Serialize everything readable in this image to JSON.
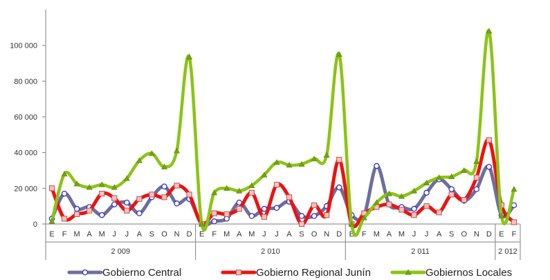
{
  "colors": {
    "Gobierno Central": "#6e6e9e",
    "Gobierno Regional Junín": "#ee1111",
    "Gobiernos Locales": "#8cc414"
  },
  "chart_data": {
    "type": "line",
    "title": "",
    "xlabel": "",
    "ylabel": "",
    "ylim": [
      0,
      120000
    ],
    "yticks": [
      0,
      20000,
      40000,
      60000,
      80000,
      100000
    ],
    "ytick_labels": [
      "0",
      "20 000",
      "40 000",
      "60 000",
      "80 000",
      "100 000"
    ],
    "x": [
      "E",
      "F",
      "M",
      "A",
      "M",
      "J",
      "J",
      "A",
      "S",
      "O",
      "N",
      "D",
      "E",
      "F",
      "M",
      "A",
      "M",
      "J",
      "J",
      "A",
      "S",
      "O",
      "N",
      "D",
      "E",
      "F",
      "M",
      "A",
      "M",
      "J",
      "J",
      "A",
      "S",
      "O",
      "N",
      "D",
      "E",
      "F"
    ],
    "year_groups": [
      {
        "label": "2 009",
        "count": 12
      },
      {
        "label": "2 010",
        "count": 12
      },
      {
        "label": "2 011",
        "count": 12
      },
      {
        "label": "2 012",
        "count": 2
      }
    ],
    "grid": false,
    "legend_position": "bottom",
    "series": [
      {
        "name": "Gobierno Central",
        "marker": "circle",
        "values": [
          3000,
          17000,
          8500,
          9500,
          5000,
          11000,
          12000,
          6000,
          15000,
          21000,
          11500,
          14000,
          0,
          1500,
          3000,
          12000,
          4500,
          8500,
          9000,
          12500,
          4500,
          4500,
          10000,
          20500,
          5000,
          5000,
          32500,
          11000,
          9500,
          8500,
          17500,
          25000,
          19500,
          13000,
          19500,
          32000,
          5000,
          10500
        ]
      },
      {
        "name": "Gobierno Regional Junín",
        "marker": "square",
        "values": [
          20000,
          3000,
          5500,
          7500,
          17000,
          14500,
          7500,
          14000,
          16500,
          15000,
          21500,
          16500,
          0,
          6000,
          5500,
          8500,
          17500,
          4000,
          22000,
          15000,
          0,
          10500,
          5000,
          36000,
          0,
          6000,
          9500,
          11000,
          8000,
          5000,
          10000,
          6500,
          16500,
          13500,
          26000,
          47000,
          10500,
          1000
        ]
      },
      {
        "name": "Gobiernos Locales",
        "marker": "triangle",
        "values": [
          1500,
          28000,
          22500,
          20500,
          22000,
          20500,
          25500,
          35500,
          39500,
          32000,
          41000,
          93500,
          0,
          17500,
          20000,
          18500,
          21500,
          27500,
          34500,
          33000,
          33500,
          36500,
          38500,
          95000,
          0,
          3500,
          12000,
          17000,
          15500,
          18500,
          23000,
          26000,
          26500,
          30000,
          35000,
          108000,
          4500,
          19500
        ]
      }
    ]
  }
}
